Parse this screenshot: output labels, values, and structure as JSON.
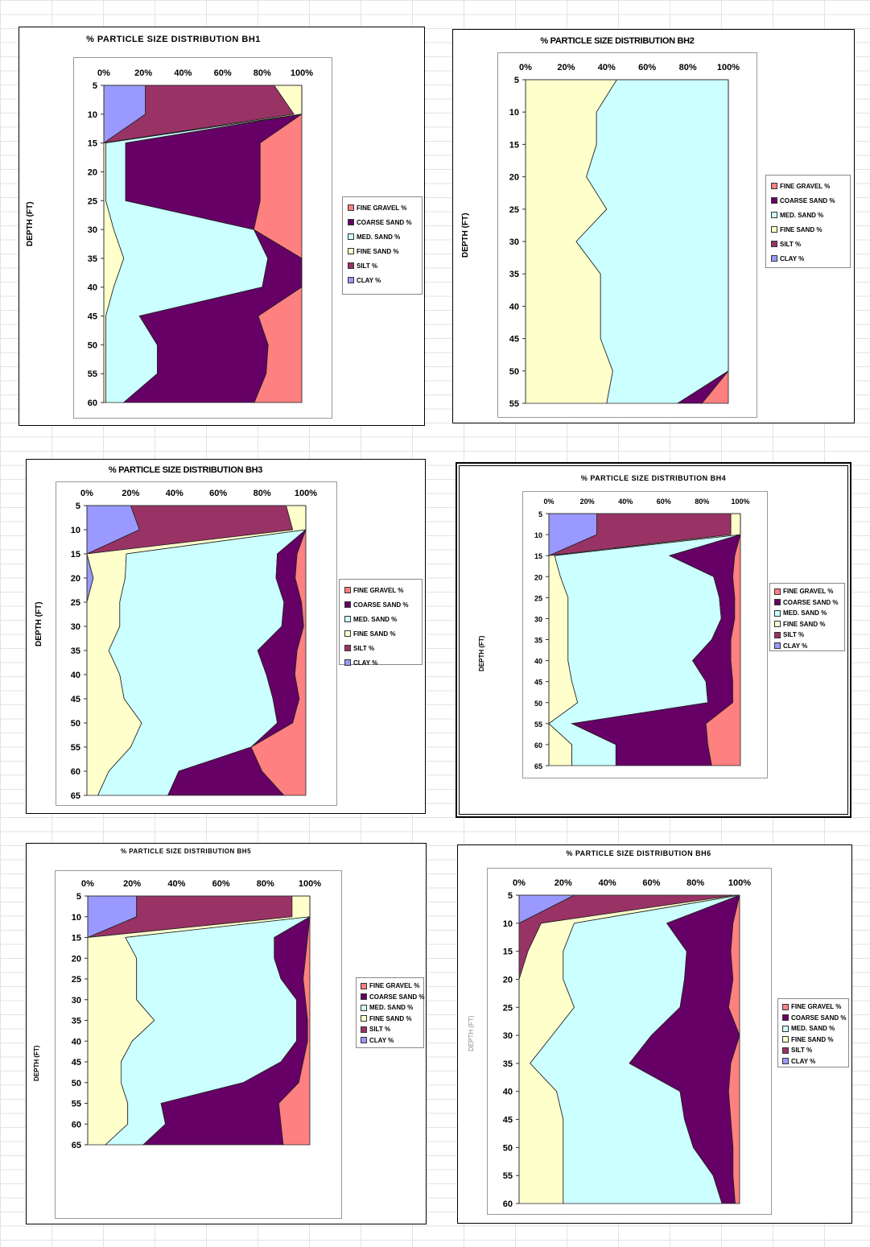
{
  "legend": {
    "items": [
      {
        "label": "FINE GRAVEL %",
        "color": "#ff8080"
      },
      {
        "label": "COARSE SAND %",
        "color": "#660066"
      },
      {
        "label": "MED. SAND %",
        "color": "#ccffff"
      },
      {
        "label": "FINE SAND %",
        "color": "#ffffcc"
      },
      {
        "label": "SILT %",
        "color": "#993366"
      },
      {
        "label": "CLAY %",
        "color": "#9999ff"
      }
    ]
  },
  "charts": [
    {
      "title": "% PARTICLE SIZE DISTRIBUTION BH1",
      "ylabel": "DEPTH (FT)"
    },
    {
      "title": "% PARTICLE SIZE DISTRIBUTION BH2",
      "ylabel": "DEPTH (FT)"
    },
    {
      "title": "% PARTICLE SIZE DISTRIBUTION BH3",
      "ylabel": "DEPTH (FT)"
    },
    {
      "title": "% PARTICLE SIZE DISTRIBUTION BH4",
      "ylabel": "DEPTH (FT)"
    },
    {
      "title": "% PARTICLE SIZE DISTRIBUTION BH5",
      "ylabel": "DEPTH (FT)"
    },
    {
      "title": "% PARTICLE SIZE DISTRIBUTION BH6",
      "ylabel": "DEPTH (FT)"
    }
  ],
  "chart_data": [
    {
      "type": "area",
      "orientation": "horizontal-stacked-percent",
      "title": "% PARTICLE SIZE DISTRIBUTION BH1",
      "ylabel": "DEPTH (FT)",
      "xticks": [
        "0%",
        "20%",
        "40%",
        "60%",
        "80%",
        "100%"
      ],
      "depth": [
        5,
        10,
        15,
        20,
        25,
        30,
        35,
        40,
        45,
        50,
        55,
        60
      ],
      "series": [
        {
          "name": "CLAY %",
          "values": [
            21,
            21,
            0,
            0,
            0,
            0,
            0,
            0,
            0,
            0,
            0,
            0
          ]
        },
        {
          "name": "SILT %",
          "values": [
            65,
            75,
            0,
            0,
            0,
            0,
            0,
            0,
            0,
            0,
            0,
            0
          ]
        },
        {
          "name": "FINE SAND %",
          "values": [
            14,
            4,
            1,
            1,
            1,
            5,
            10,
            5,
            1,
            1,
            1,
            1
          ]
        },
        {
          "name": "MED. SAND %",
          "values": [
            0,
            0,
            10,
            10,
            10,
            70,
            72,
            75,
            17,
            26,
            26,
            9
          ]
        },
        {
          "name": "COARSE SAND %",
          "values": [
            0,
            0,
            68,
            68,
            68,
            0,
            17,
            20,
            60,
            56,
            55,
            66
          ]
        },
        {
          "name": "FINE GRAVEL %",
          "values": [
            0,
            0,
            21,
            21,
            21,
            24,
            0,
            0,
            22,
            17,
            18,
            24
          ]
        }
      ]
    },
    {
      "type": "area",
      "orientation": "horizontal-stacked-percent",
      "title": "% PARTICLE SIZE DISTRIBUTION BH2",
      "ylabel": "DEPTH (FT)",
      "xticks": [
        "0%",
        "20%",
        "40%",
        "60%",
        "80%",
        "100%"
      ],
      "depth": [
        5,
        10,
        15,
        20,
        25,
        30,
        35,
        40,
        45,
        50,
        55
      ],
      "series": [
        {
          "name": "CLAY %",
          "values": [
            0,
            0,
            0,
            0,
            0,
            0,
            0,
            0,
            0,
            0,
            0
          ]
        },
        {
          "name": "SILT %",
          "values": [
            0,
            0,
            0,
            0,
            0,
            0,
            0,
            0,
            0,
            0,
            0
          ]
        },
        {
          "name": "FINE SAND %",
          "values": [
            45,
            35,
            35,
            30,
            40,
            25,
            37,
            37,
            37,
            43,
            40
          ]
        },
        {
          "name": "MED. SAND %",
          "values": [
            55,
            65,
            65,
            70,
            60,
            75,
            63,
            63,
            63,
            57,
            35
          ]
        },
        {
          "name": "COARSE SAND %",
          "values": [
            0,
            0,
            0,
            0,
            0,
            0,
            0,
            0,
            0,
            0,
            12
          ]
        },
        {
          "name": "FINE GRAVEL %",
          "values": [
            0,
            0,
            0,
            0,
            0,
            0,
            0,
            0,
            0,
            0,
            13
          ]
        }
      ]
    },
    {
      "type": "area",
      "orientation": "horizontal-stacked-percent",
      "title": "% PARTICLE SIZE DISTRIBUTION BH3",
      "ylabel": "DEPTH (FT)",
      "xticks": [
        "0%",
        "20%",
        "40%",
        "60%",
        "80%",
        "100%"
      ],
      "depth": [
        5,
        10,
        15,
        20,
        25,
        30,
        35,
        40,
        45,
        50,
        55,
        60,
        65
      ],
      "series": [
        {
          "name": "CLAY %",
          "values": [
            20,
            24,
            0,
            3,
            0,
            0,
            0,
            0,
            0,
            0,
            0,
            0,
            0
          ]
        },
        {
          "name": "SILT %",
          "values": [
            71,
            70,
            0,
            0,
            0,
            0,
            0,
            0,
            0,
            0,
            0,
            0,
            0
          ]
        },
        {
          "name": "FINE SAND %",
          "values": [
            9,
            6,
            18,
            15,
            15,
            15,
            10,
            15,
            17,
            25,
            20,
            10,
            5
          ]
        },
        {
          "name": "MED. SAND %",
          "values": [
            0,
            0,
            69,
            71,
            75,
            74,
            68,
            67,
            68,
            62,
            55,
            32,
            32
          ]
        },
        {
          "name": "COARSE SAND %",
          "values": [
            0,
            0,
            9,
            9,
            8,
            10,
            18,
            13,
            12,
            7,
            0,
            38,
            53
          ]
        },
        {
          "name": "FINE GRAVEL %",
          "values": [
            0,
            0,
            4,
            5,
            2,
            1,
            4,
            5,
            3,
            6,
            25,
            20,
            10
          ]
        }
      ]
    },
    {
      "type": "area",
      "orientation": "horizontal-stacked-percent",
      "title": "% PARTICLE SIZE DISTRIBUTION BH4",
      "ylabel": "DEPTH (FT)",
      "xticks": [
        "0%",
        "20%",
        "40%",
        "60%",
        "80%",
        "100%"
      ],
      "depth": [
        5,
        10,
        15,
        20,
        25,
        30,
        35,
        40,
        45,
        50,
        55,
        60,
        65
      ],
      "series": [
        {
          "name": "CLAY %",
          "values": [
            25,
            25,
            0,
            0,
            0,
            0,
            0,
            0,
            0,
            0,
            0,
            0,
            0
          ]
        },
        {
          "name": "SILT %",
          "values": [
            70,
            70,
            0,
            0,
            0,
            0,
            0,
            0,
            0,
            0,
            0,
            0,
            0
          ]
        },
        {
          "name": "FINE SAND %",
          "values": [
            5,
            5,
            3,
            6,
            10,
            10,
            10,
            10,
            12,
            15,
            0,
            12,
            12
          ]
        },
        {
          "name": "MED. SAND %",
          "values": [
            0,
            0,
            60,
            80,
            79,
            80,
            75,
            65,
            70,
            68,
            12,
            23,
            23
          ]
        },
        {
          "name": "COARSE SAND %",
          "values": [
            0,
            0,
            34,
            10,
            8,
            7,
            10,
            20,
            14,
            13,
            70,
            48,
            50
          ]
        },
        {
          "name": "FINE GRAVEL %",
          "values": [
            0,
            0,
            3,
            4,
            3,
            3,
            5,
            5,
            4,
            4,
            18,
            17,
            15
          ]
        }
      ]
    },
    {
      "type": "area",
      "orientation": "horizontal-stacked-percent",
      "title": "% PARTICLE SIZE DISTRIBUTION BH5",
      "ylabel": "DEPTH (FT)",
      "xticks": [
        "0%",
        "20%",
        "40%",
        "60%",
        "80%",
        "100%"
      ],
      "depth": [
        5,
        10,
        15,
        20,
        25,
        30,
        35,
        40,
        45,
        50,
        55,
        60,
        65
      ],
      "series": [
        {
          "name": "CLAY %",
          "values": [
            22,
            22,
            0,
            0,
            0,
            0,
            0,
            0,
            0,
            0,
            0,
            0,
            0
          ]
        },
        {
          "name": "SILT %",
          "values": [
            70,
            70,
            0,
            0,
            0,
            0,
            0,
            0,
            0,
            0,
            0,
            0,
            0
          ]
        },
        {
          "name": "FINE SAND %",
          "values": [
            8,
            8,
            17,
            22,
            22,
            22,
            30,
            20,
            15,
            15,
            18,
            18,
            8
          ]
        },
        {
          "name": "MED. SAND %",
          "values": [
            0,
            0,
            67,
            62,
            65,
            72,
            64,
            74,
            72,
            55,
            15,
            17,
            17
          ]
        },
        {
          "name": "COARSE SAND %",
          "values": [
            0,
            0,
            15,
            14,
            10,
            4,
            5,
            5,
            10,
            25,
            53,
            52,
            63
          ]
        },
        {
          "name": "FINE GRAVEL %",
          "values": [
            0,
            0,
            1,
            2,
            3,
            2,
            1,
            1,
            3,
            5,
            14,
            13,
            12
          ]
        }
      ]
    },
    {
      "type": "area",
      "orientation": "horizontal-stacked-percent",
      "title": "% PARTICLE SIZE DISTRIBUTION BH6",
      "ylabel": "DEPTH (FT)",
      "xticks": [
        "0%",
        "20%",
        "40%",
        "60%",
        "80%",
        "100%"
      ],
      "depth": [
        5,
        10,
        15,
        20,
        25,
        30,
        35,
        40,
        45,
        50,
        55,
        60
      ],
      "series": [
        {
          "name": "CLAY %",
          "values": [
            25,
            0,
            0,
            0,
            0,
            0,
            0,
            0,
            0,
            0,
            0,
            0
          ]
        },
        {
          "name": "SILT %",
          "values": [
            73,
            10,
            4,
            0,
            0,
            0,
            0,
            0,
            0,
            0,
            0,
            0
          ]
        },
        {
          "name": "FINE SAND %",
          "values": [
            2,
            15,
            16,
            20,
            25,
            15,
            5,
            17,
            20,
            20,
            20,
            20
          ]
        },
        {
          "name": "MED. SAND %",
          "values": [
            0,
            42,
            56,
            55,
            48,
            45,
            45,
            56,
            55,
            59,
            68,
            72
          ]
        },
        {
          "name": "COARSE SAND %",
          "values": [
            0,
            30,
            20,
            22,
            22,
            40,
            46,
            22,
            21,
            18,
            9,
            6
          ]
        },
        {
          "name": "FINE GRAVEL %",
          "values": [
            0,
            3,
            4,
            3,
            5,
            0,
            4,
            5,
            4,
            3,
            3,
            2
          ]
        }
      ]
    }
  ]
}
